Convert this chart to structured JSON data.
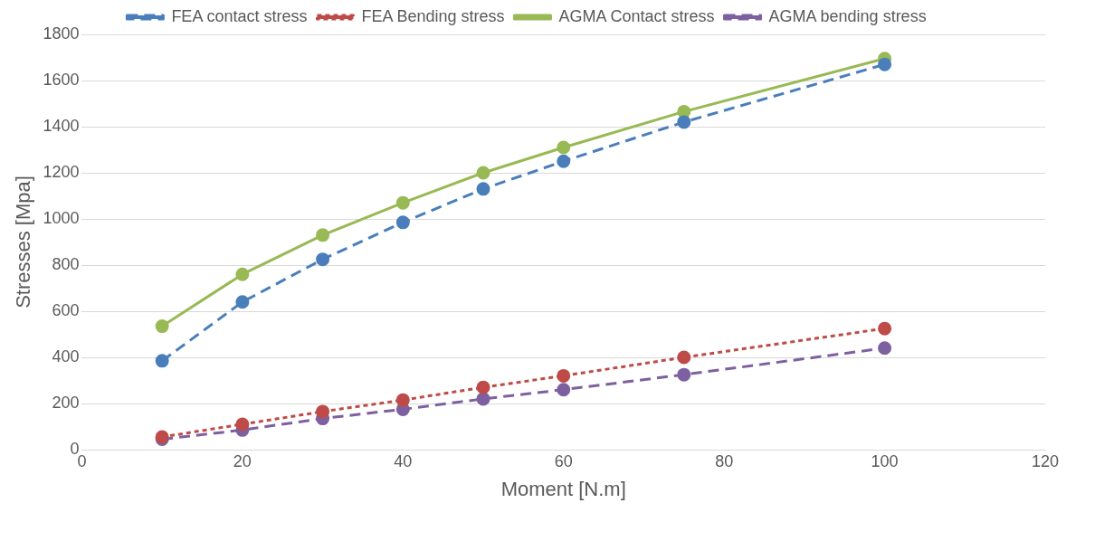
{
  "chart_data": {
    "type": "line",
    "xlabel": "Moment [N.m]",
    "ylabel": "Stresses [Mpa]",
    "x": [
      10,
      20,
      30,
      40,
      50,
      60,
      75,
      100
    ],
    "series": [
      {
        "name": "FEA contact stress",
        "color": "#4a7ebb",
        "line_style": "dashed",
        "values": [
          385,
          640,
          825,
          985,
          1130,
          1250,
          1420,
          1670
        ]
      },
      {
        "name": "FEA Bending stress",
        "color": "#be4b48",
        "line_style": "dotted",
        "values": [
          55,
          110,
          165,
          215,
          270,
          320,
          400,
          525
        ]
      },
      {
        "name": "AGMA Contact stress",
        "color": "#98b954",
        "line_style": "solid",
        "values": [
          535,
          760,
          930,
          1070,
          1200,
          1310,
          1465,
          1695
        ]
      },
      {
        "name": "AGMA bending stress",
        "color": "#7d60a0",
        "line_style": "dashed",
        "values": [
          45,
          85,
          135,
          175,
          220,
          260,
          325,
          440
        ]
      }
    ],
    "xlim": [
      0,
      120
    ],
    "xticks": [
      0,
      20,
      40,
      60,
      80,
      100,
      120
    ],
    "ylim": [
      0,
      1800
    ],
    "yticks": [
      0,
      200,
      400,
      600,
      800,
      1000,
      1200,
      1400,
      1600,
      1800
    ],
    "grid": "y",
    "legend": "top",
    "marker": "circle"
  }
}
